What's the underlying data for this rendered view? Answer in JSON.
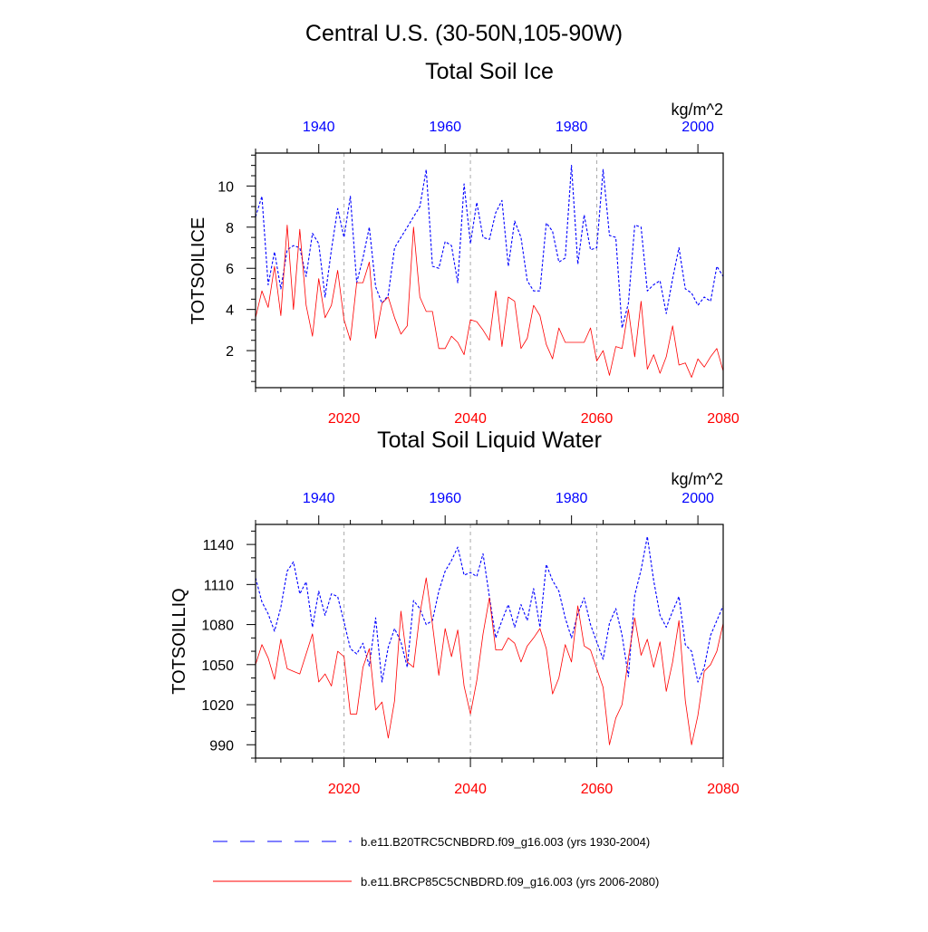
{
  "figure": {
    "title_line1": "Central U.S. (30-50N,105-90W)",
    "colors": {
      "top_axis": "#0000ff",
      "bottom_axis": "#ff0000",
      "series_blue": "#0000ff",
      "series_red": "#ff0000",
      "grid": "#aaaaaa"
    },
    "legend": [
      {
        "label": "b.e11.B20TRC5CNBDRD.f09_g16.003 (yrs 1930-2004)",
        "style": "dashed",
        "color": "#0000ff"
      },
      {
        "label": "b.e11.BRCP85C5CNBDRD.f09_g16.003 (yrs 2006-2080)",
        "style": "solid",
        "color": "#ff0000"
      }
    ]
  },
  "chart_data": [
    {
      "type": "line",
      "title": "Total Soil Ice",
      "ylabel": "TOTSOILICE",
      "units": "kg/m^2",
      "xlim_bottom": [
        2006,
        2080
      ],
      "xlim_top": [
        1930,
        2004
      ],
      "ylim": [
        0.2,
        11.6
      ],
      "yticks": [
        2,
        4,
        6,
        8,
        10
      ],
      "yminor_step": 0.5,
      "xticks_bottom": [
        2020,
        2040,
        2060,
        2080
      ],
      "xticks_top": [
        1940,
        1960,
        1980,
        2000
      ],
      "grid_x": [
        2020,
        2040,
        2060
      ],
      "series": [
        {
          "name": "b.e11.B20TRC5CNBDRD.f09_g16.003 (yrs 1930-2004)",
          "x_start": 1930,
          "values": [
            8.5,
            9.5,
            5.2,
            6.8,
            5.0,
            6.9,
            7.1,
            7.0,
            5.6,
            7.7,
            7.2,
            4.6,
            6.9,
            8.9,
            7.5,
            9.5,
            5.3,
            6.5,
            8.0,
            5.1,
            4.3,
            4.7,
            7.0,
            7.5,
            8.0,
            8.5,
            9.0,
            10.8,
            6.1,
            6.0,
            7.3,
            7.1,
            5.3,
            10.1,
            7.2,
            9.2,
            7.5,
            7.4,
            8.7,
            9.3,
            6.1,
            8.3,
            7.5,
            5.4,
            4.9,
            4.9,
            8.2,
            7.8,
            6.3,
            6.5,
            11.0,
            6.2,
            8.6,
            6.9,
            7.0,
            10.8,
            7.6,
            7.5,
            3.1,
            4.3,
            8.1,
            8.0,
            4.9,
            5.2,
            5.4,
            3.8,
            5.5,
            7.0,
            5.0,
            4.8,
            4.2,
            4.6,
            4.4,
            6.1,
            5.6
          ]
        },
        {
          "name": "b.e11.BRCP85C5CNBDRD.f09_g16.003 (yrs 2006-2080)",
          "x_start": 2006,
          "values": [
            3.6,
            4.9,
            4.1,
            6.1,
            3.7,
            8.1,
            4.0,
            7.9,
            4.2,
            2.7,
            5.5,
            3.6,
            4.2,
            5.9,
            3.5,
            2.5,
            5.3,
            5.3,
            6.3,
            2.6,
            4.3,
            4.6,
            3.6,
            2.8,
            3.2,
            8.0,
            4.6,
            3.9,
            3.9,
            2.1,
            2.1,
            2.7,
            2.4,
            1.8,
            3.5,
            3.4,
            3.0,
            2.5,
            4.9,
            2.2,
            4.6,
            4.4,
            2.1,
            2.6,
            4.2,
            3.7,
            2.3,
            1.6,
            3.1,
            2.4,
            2.4,
            2.4,
            2.4,
            3.1,
            1.5,
            2.0,
            0.8,
            2.2,
            2.1,
            4.0,
            1.7,
            4.4,
            1.1,
            1.8,
            0.9,
            1.7,
            3.2,
            1.3,
            1.4,
            0.7,
            1.6,
            1.2,
            1.7,
            2.1,
            1.0
          ]
        }
      ]
    },
    {
      "type": "line",
      "title": "Total Soil Liquid Water",
      "ylabel": "TOTSOILLIQ",
      "units": "kg/m^2",
      "xlim_bottom": [
        2006,
        2080
      ],
      "xlim_top": [
        1930,
        2004
      ],
      "ylim": [
        980,
        1155
      ],
      "yticks": [
        990,
        1020,
        1050,
        1080,
        1110,
        1140
      ],
      "yminor_step": 10,
      "xticks_bottom": [
        2020,
        2040,
        2060,
        2080
      ],
      "xticks_top": [
        1940,
        1960,
        1980,
        2000
      ],
      "grid_x": [
        2020,
        2040,
        2060
      ],
      "series": [
        {
          "name": "b.e11.B20TRC5CNBDRD.f09_g16.003 (yrs 1930-2004)",
          "x_start": 1930,
          "values": [
            1115,
            1097,
            1088,
            1075,
            1093,
            1120,
            1127,
            1103,
            1112,
            1078,
            1105,
            1087,
            1103,
            1101,
            1082,
            1062,
            1058,
            1066,
            1049,
            1085,
            1037,
            1063,
            1077,
            1067,
            1048,
            1098,
            1092,
            1080,
            1083,
            1105,
            1120,
            1128,
            1138,
            1117,
            1119,
            1116,
            1133,
            1101,
            1070,
            1083,
            1095,
            1078,
            1095,
            1083,
            1107,
            1078,
            1125,
            1113,
            1105,
            1085,
            1070,
            1088,
            1100,
            1080,
            1067,
            1054,
            1081,
            1092,
            1072,
            1041,
            1102,
            1121,
            1146,
            1113,
            1087,
            1078,
            1090,
            1101,
            1065,
            1060,
            1037,
            1048,
            1072,
            1083,
            1094
          ]
        },
        {
          "name": "b.e11.BRCP85C5CNBDRD.f09_g16.003 (yrs 2006-2080)",
          "x_start": 2006,
          "values": [
            1050,
            1065,
            1055,
            1039,
            1069,
            1047,
            1045,
            1043,
            1058,
            1073,
            1037,
            1043,
            1034,
            1060,
            1056,
            1013,
            1013,
            1048,
            1062,
            1016,
            1022,
            995,
            1023,
            1090,
            1052,
            1048,
            1088,
            1115,
            1080,
            1042,
            1077,
            1056,
            1076,
            1034,
            1013,
            1038,
            1073,
            1100,
            1061,
            1061,
            1070,
            1066,
            1052,
            1064,
            1070,
            1077,
            1062,
            1028,
            1040,
            1065,
            1052,
            1094,
            1064,
            1061,
            1047,
            1033,
            990,
            1010,
            1020,
            1055,
            1085,
            1057,
            1069,
            1048,
            1067,
            1030,
            1052,
            1083,
            1023,
            990,
            1012,
            1045,
            1050,
            1060,
            1081
          ]
        }
      ]
    }
  ]
}
